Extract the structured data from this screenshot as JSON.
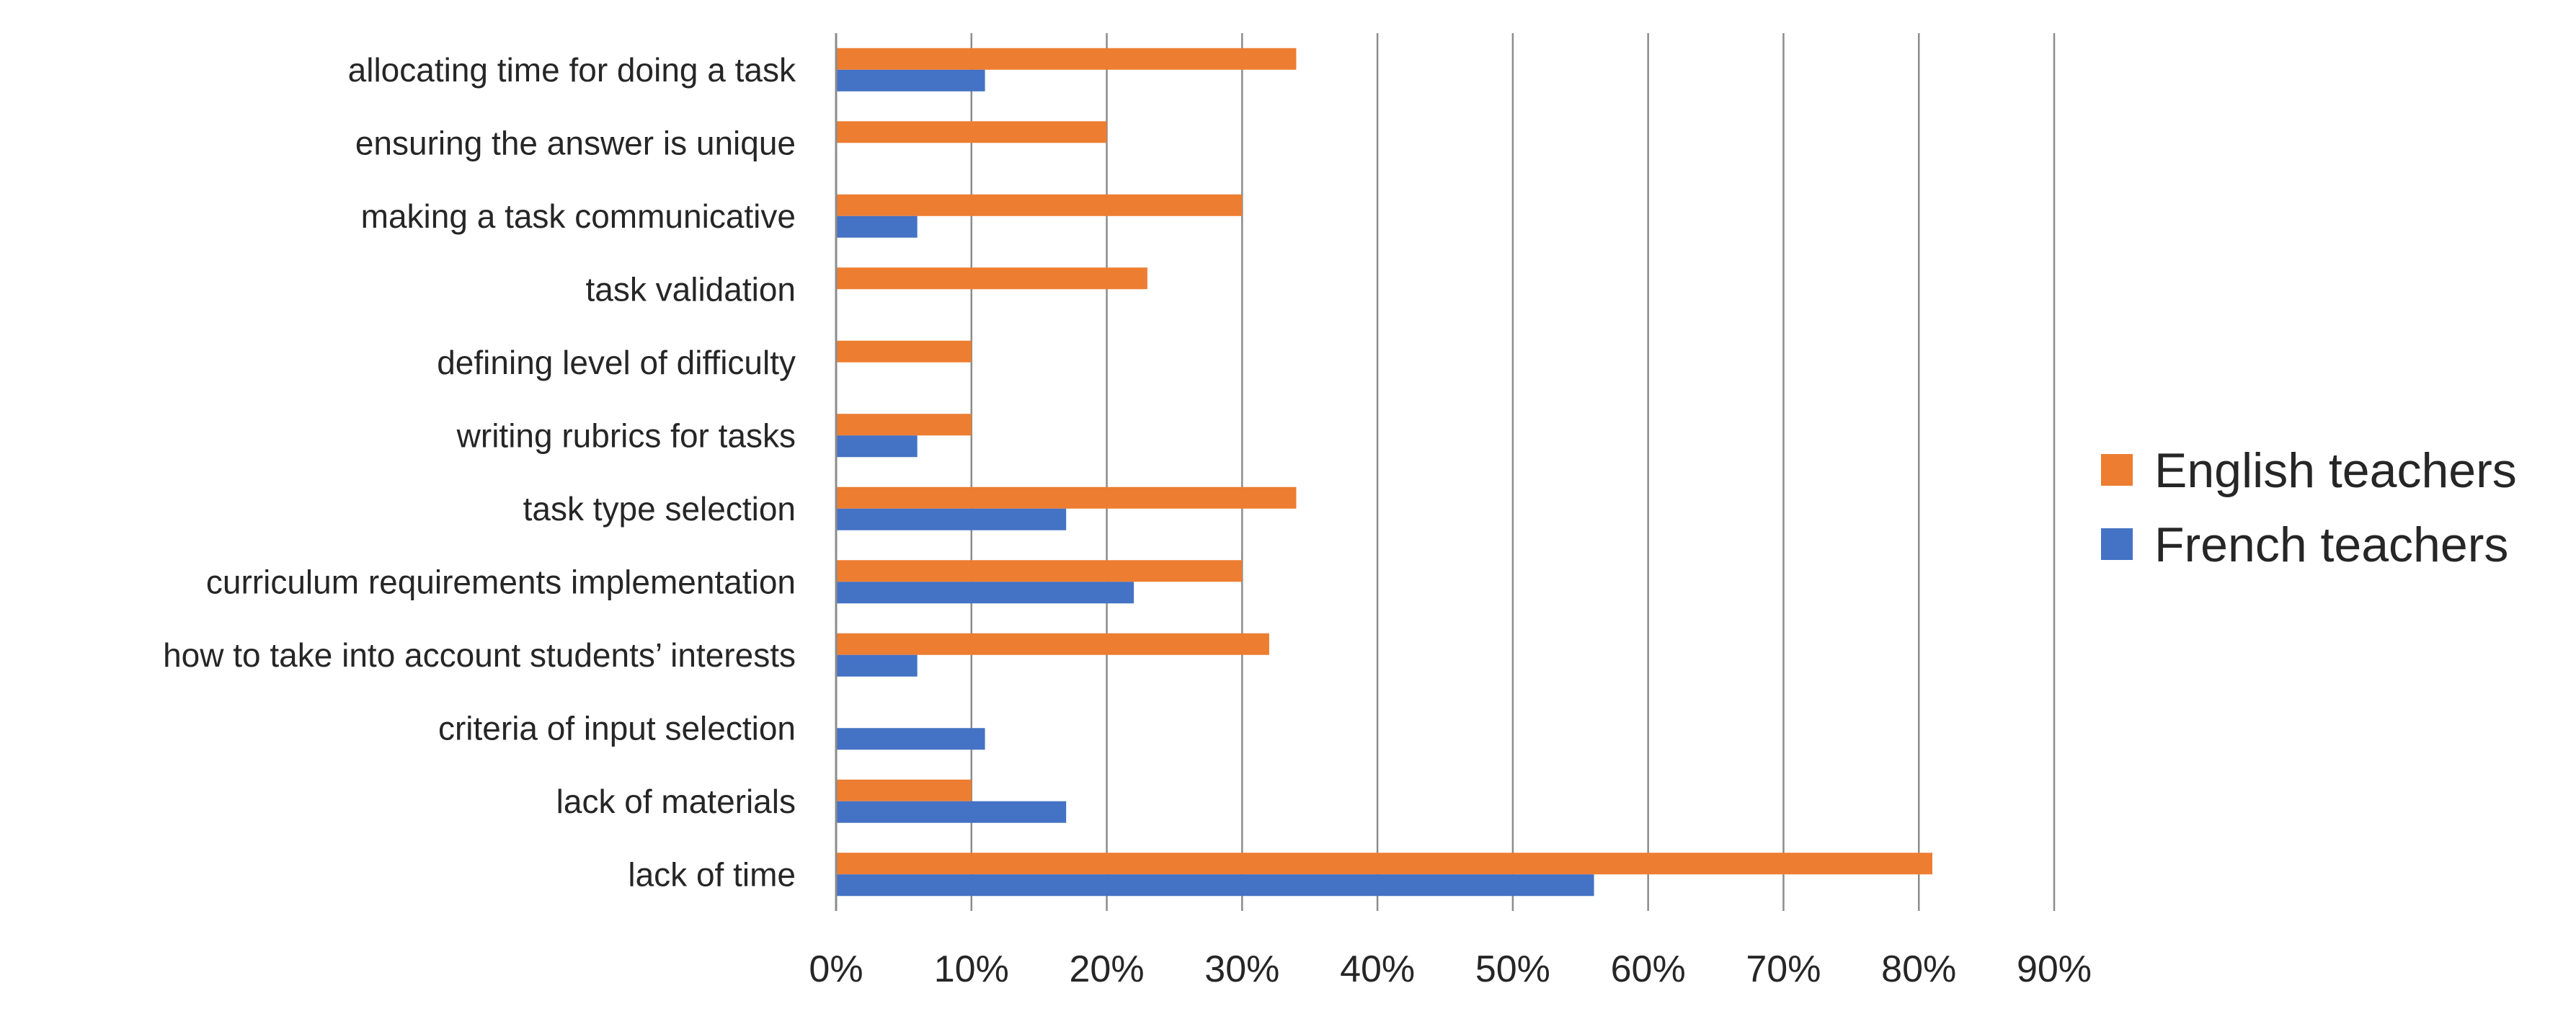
{
  "chart_data": {
    "type": "bar",
    "orientation": "horizontal",
    "categories": [
      "allocating time for doing a task",
      "ensuring the answer is unique",
      "making a task communicative",
      "task validation",
      "defining level of difficulty",
      "writing rubrics for tasks",
      "task type selection",
      "curriculum requirements implementation",
      "how to take into account students’ interests",
      "criteria of input selection",
      "lack of materials",
      "lack of time"
    ],
    "series": [
      {
        "name": "English teachers",
        "color": "#ED7D31",
        "values": [
          34,
          20,
          30,
          23,
          10,
          10,
          34,
          30,
          32,
          0,
          10,
          81
        ]
      },
      {
        "name": "French teachers",
        "color": "#4472C4",
        "values": [
          11,
          0,
          6,
          0,
          0,
          6,
          17,
          22,
          6,
          11,
          17,
          56
        ]
      }
    ],
    "xlim": [
      0,
      90
    ],
    "xticks": [
      "0%",
      "10%",
      "20%",
      "30%",
      "40%",
      "50%",
      "60%",
      "70%",
      "80%",
      "90%"
    ],
    "grid": true,
    "legend": "right"
  }
}
